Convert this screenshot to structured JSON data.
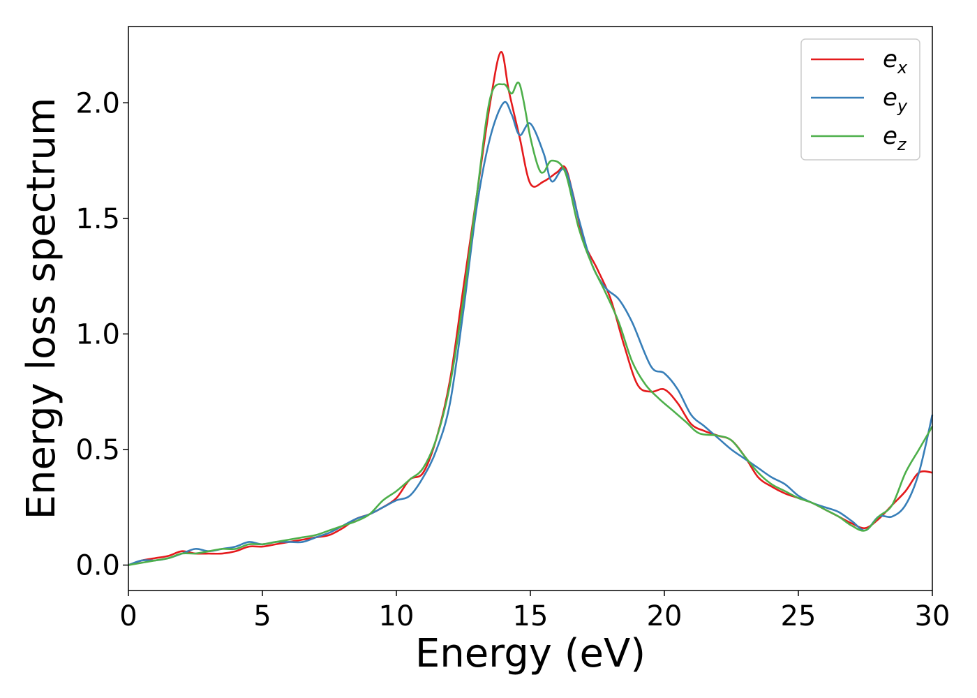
{
  "chart_data": {
    "type": "line",
    "xlabel": "Energy (eV)",
    "ylabel": "Energy loss spectrum",
    "xlim": [
      0,
      30
    ],
    "ylim": [
      -0.11,
      2.33
    ],
    "xticks": [
      0,
      5,
      10,
      15,
      20,
      25,
      30
    ],
    "xtick_labels": [
      "0",
      "5",
      "10",
      "15",
      "20",
      "25",
      "30"
    ],
    "yticks": [
      0.0,
      0.5,
      1.0,
      1.5,
      2.0
    ],
    "ytick_labels": [
      "0.0",
      "0.5",
      "1.0",
      "1.5",
      "2.0"
    ],
    "grid": false,
    "legend_position": "top-right",
    "series": [
      {
        "name": "e_x",
        "label_base": "e",
        "label_sub": "x",
        "color": "#e41a1c",
        "points": [
          [
            0,
            0
          ],
          [
            0.5,
            0.02
          ],
          [
            1,
            0.03
          ],
          [
            1.5,
            0.04
          ],
          [
            2,
            0.06
          ],
          [
            2.5,
            0.05
          ],
          [
            3,
            0.05
          ],
          [
            3.5,
            0.05
          ],
          [
            4,
            0.06
          ],
          [
            4.5,
            0.08
          ],
          [
            5,
            0.08
          ],
          [
            5.5,
            0.09
          ],
          [
            6,
            0.1
          ],
          [
            6.5,
            0.11
          ],
          [
            7,
            0.12
          ],
          [
            7.5,
            0.13
          ],
          [
            8,
            0.16
          ],
          [
            8.5,
            0.2
          ],
          [
            9,
            0.22
          ],
          [
            9.5,
            0.25
          ],
          [
            10,
            0.29
          ],
          [
            10.5,
            0.37
          ],
          [
            11,
            0.4
          ],
          [
            11.5,
            0.55
          ],
          [
            12,
            0.8
          ],
          [
            12.5,
            1.2
          ],
          [
            13,
            1.6
          ],
          [
            13.5,
            2.0
          ],
          [
            13.9,
            2.22
          ],
          [
            14.2,
            2.05
          ],
          [
            14.6,
            1.85
          ],
          [
            15,
            1.65
          ],
          [
            15.5,
            1.66
          ],
          [
            16,
            1.7
          ],
          [
            16.3,
            1.72
          ],
          [
            16.6,
            1.6
          ],
          [
            17,
            1.4
          ],
          [
            17.5,
            1.28
          ],
          [
            18,
            1.15
          ],
          [
            18.5,
            0.95
          ],
          [
            19,
            0.78
          ],
          [
            19.5,
            0.75
          ],
          [
            20,
            0.76
          ],
          [
            20.5,
            0.7
          ],
          [
            21,
            0.61
          ],
          [
            21.5,
            0.58
          ],
          [
            22,
            0.56
          ],
          [
            22.5,
            0.54
          ],
          [
            23,
            0.47
          ],
          [
            23.5,
            0.38
          ],
          [
            24,
            0.34
          ],
          [
            24.5,
            0.31
          ],
          [
            25,
            0.29
          ],
          [
            25.5,
            0.27
          ],
          [
            26,
            0.24
          ],
          [
            26.5,
            0.21
          ],
          [
            27,
            0.18
          ],
          [
            27.5,
            0.16
          ],
          [
            28,
            0.2
          ],
          [
            28.5,
            0.26
          ],
          [
            29,
            0.32
          ],
          [
            29.5,
            0.4
          ],
          [
            30,
            0.4
          ]
        ]
      },
      {
        "name": "e_y",
        "label_base": "e",
        "label_sub": "y",
        "color": "#377eb8",
        "points": [
          [
            0,
            0
          ],
          [
            0.5,
            0.02
          ],
          [
            1,
            0.02
          ],
          [
            1.5,
            0.03
          ],
          [
            2,
            0.05
          ],
          [
            2.5,
            0.07
          ],
          [
            3,
            0.06
          ],
          [
            3.5,
            0.07
          ],
          [
            4,
            0.08
          ],
          [
            4.5,
            0.1
          ],
          [
            5,
            0.09
          ],
          [
            5.5,
            0.1
          ],
          [
            6,
            0.1
          ],
          [
            6.5,
            0.1
          ],
          [
            7,
            0.12
          ],
          [
            7.5,
            0.14
          ],
          [
            8,
            0.17
          ],
          [
            8.5,
            0.2
          ],
          [
            9,
            0.22
          ],
          [
            9.5,
            0.25
          ],
          [
            10,
            0.28
          ],
          [
            10.5,
            0.3
          ],
          [
            11,
            0.38
          ],
          [
            11.5,
            0.5
          ],
          [
            12,
            0.7
          ],
          [
            12.5,
            1.1
          ],
          [
            13,
            1.55
          ],
          [
            13.5,
            1.85
          ],
          [
            14,
            2.0
          ],
          [
            14.3,
            1.95
          ],
          [
            14.6,
            1.86
          ],
          [
            15,
            1.91
          ],
          [
            15.5,
            1.78
          ],
          [
            15.8,
            1.66
          ],
          [
            16.3,
            1.71
          ],
          [
            16.8,
            1.5
          ],
          [
            17.3,
            1.3
          ],
          [
            17.8,
            1.2
          ],
          [
            18.3,
            1.15
          ],
          [
            18.8,
            1.05
          ],
          [
            19.5,
            0.86
          ],
          [
            20,
            0.83
          ],
          [
            20.5,
            0.76
          ],
          [
            21,
            0.65
          ],
          [
            21.5,
            0.6
          ],
          [
            22,
            0.55
          ],
          [
            22.5,
            0.5
          ],
          [
            23,
            0.46
          ],
          [
            23.5,
            0.42
          ],
          [
            24,
            0.38
          ],
          [
            24.5,
            0.35
          ],
          [
            25,
            0.3
          ],
          [
            25.5,
            0.27
          ],
          [
            26,
            0.25
          ],
          [
            26.5,
            0.23
          ],
          [
            27,
            0.19
          ],
          [
            27.5,
            0.15
          ],
          [
            28,
            0.21
          ],
          [
            28.5,
            0.21
          ],
          [
            29,
            0.26
          ],
          [
            29.5,
            0.4
          ],
          [
            30,
            0.65
          ]
        ]
      },
      {
        "name": "e_z",
        "label_base": "e",
        "label_sub": "z",
        "color": "#4daf4a",
        "points": [
          [
            0,
            0
          ],
          [
            0.5,
            0.01
          ],
          [
            1,
            0.02
          ],
          [
            1.5,
            0.03
          ],
          [
            2,
            0.05
          ],
          [
            2.5,
            0.05
          ],
          [
            3,
            0.06
          ],
          [
            3.5,
            0.07
          ],
          [
            4,
            0.07
          ],
          [
            4.5,
            0.09
          ],
          [
            5,
            0.09
          ],
          [
            5.5,
            0.1
          ],
          [
            6,
            0.11
          ],
          [
            6.5,
            0.12
          ],
          [
            7,
            0.13
          ],
          [
            7.5,
            0.15
          ],
          [
            8,
            0.17
          ],
          [
            8.5,
            0.19
          ],
          [
            9,
            0.22
          ],
          [
            9.5,
            0.28
          ],
          [
            10,
            0.32
          ],
          [
            10.5,
            0.37
          ],
          [
            11,
            0.42
          ],
          [
            11.5,
            0.55
          ],
          [
            12,
            0.78
          ],
          [
            12.5,
            1.15
          ],
          [
            13,
            1.6
          ],
          [
            13.5,
            2.02
          ],
          [
            14,
            2.08
          ],
          [
            14.3,
            2.04
          ],
          [
            14.6,
            2.08
          ],
          [
            15,
            1.85
          ],
          [
            15.3,
            1.72
          ],
          [
            15.5,
            1.7
          ],
          [
            15.8,
            1.75
          ],
          [
            16.3,
            1.7
          ],
          [
            16.8,
            1.46
          ],
          [
            17.3,
            1.3
          ],
          [
            17.8,
            1.18
          ],
          [
            18.3,
            1.05
          ],
          [
            18.8,
            0.88
          ],
          [
            19.3,
            0.78
          ],
          [
            19.8,
            0.72
          ],
          [
            20.3,
            0.67
          ],
          [
            20.8,
            0.62
          ],
          [
            21.3,
            0.57
          ],
          [
            22,
            0.56
          ],
          [
            22.5,
            0.54
          ],
          [
            23,
            0.47
          ],
          [
            23.5,
            0.4
          ],
          [
            24,
            0.35
          ],
          [
            24.5,
            0.32
          ],
          [
            25,
            0.29
          ],
          [
            25.5,
            0.27
          ],
          [
            26,
            0.24
          ],
          [
            26.5,
            0.21
          ],
          [
            27,
            0.17
          ],
          [
            27.5,
            0.15
          ],
          [
            28,
            0.21
          ],
          [
            28.5,
            0.26
          ],
          [
            29,
            0.4
          ],
          [
            29.5,
            0.5
          ],
          [
            30,
            0.6
          ]
        ]
      }
    ]
  }
}
